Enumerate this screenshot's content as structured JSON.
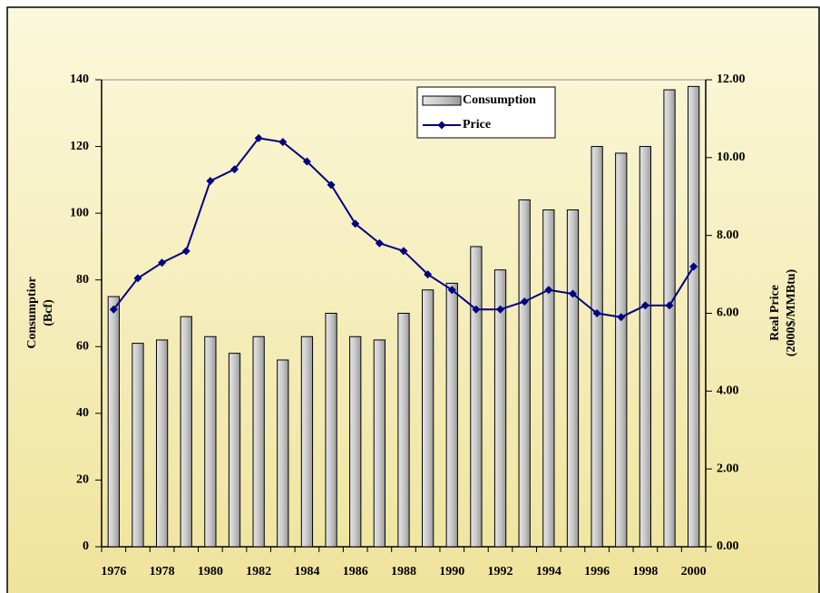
{
  "chart_data": {
    "type": "bar-line",
    "categories": [
      "1976",
      null,
      "1978",
      null,
      "1980",
      null,
      "1982",
      null,
      "1984",
      null,
      "1986",
      null,
      "1988",
      null,
      "1990",
      null,
      "1992",
      null,
      "1994",
      null,
      "1996",
      null,
      "1998",
      null,
      "2000"
    ],
    "series": [
      {
        "name": "Consumption",
        "type": "bar",
        "color": "#c0c0c0",
        "values": [
          75,
          61,
          62,
          69,
          63,
          58,
          63,
          56,
          63,
          70,
          63,
          62,
          70,
          77,
          79,
          90,
          83,
          104,
          101,
          101,
          120,
          118,
          120,
          137,
          138
        ]
      },
      {
        "name": "Price",
        "type": "line",
        "axis": "y2",
        "color": "#000080",
        "values": [
          6.1,
          6.9,
          7.3,
          7.6,
          9.4,
          9.7,
          10.5,
          10.4,
          9.9,
          9.3,
          8.3,
          7.8,
          7.6,
          7.0,
          6.6,
          6.1,
          6.1,
          6.3,
          6.6,
          6.5,
          6.0,
          5.9,
          6.2,
          6.2,
          7.2
        ]
      }
    ],
    "y_label": [
      "Consumptior",
      "(Bcf)"
    ],
    "y2_label": [
      "Real Price",
      "(2000$/MMBtu)"
    ],
    "ylim": [
      0,
      140
    ],
    "yticks": [
      0,
      20,
      40,
      60,
      80,
      100,
      120,
      140
    ],
    "y2lim": [
      0,
      12
    ],
    "y2ticks": [
      {
        "value": 0,
        "label": "0.00"
      },
      {
        "value": 2,
        "label": "2.00"
      },
      {
        "value": 4,
        "label": "4.00"
      },
      {
        "value": 6,
        "label": "6.00"
      },
      {
        "value": 8,
        "label": "8.00"
      },
      {
        "value": 10,
        "label": "10.00"
      },
      {
        "value": 12,
        "label": "12.00"
      }
    ],
    "legend": "top-right",
    "grid": false
  }
}
